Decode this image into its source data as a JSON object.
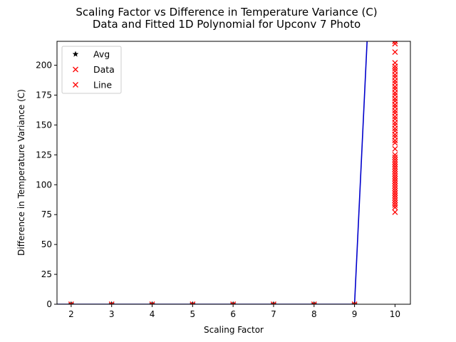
{
  "chart_data": {
    "type": "scatter",
    "title": "Scaling Factor vs Difference in Temperature Variance (C)",
    "subtitle": "Data and Fitted 1D Polynomial for Upconv 7 Photo",
    "xlabel": "Scaling Factor",
    "ylabel": "Difference in Temperature Variance (C)",
    "xlim": [
      1.65,
      10.38
    ],
    "ylim": [
      0,
      220
    ],
    "x_ticks": [
      2,
      3,
      4,
      5,
      6,
      7,
      8,
      9,
      10
    ],
    "y_ticks": [
      0,
      25,
      50,
      75,
      100,
      125,
      150,
      175,
      200
    ],
    "grid": false,
    "legend_position": "upper-left",
    "colors": {
      "avg": "#000000",
      "data": "#ff0000",
      "line": "#0000cc"
    },
    "series": [
      {
        "name": "Avg",
        "marker": "star",
        "color": "#000000",
        "points": [
          [
            2,
            0
          ],
          [
            3,
            0
          ],
          [
            4,
            0
          ],
          [
            5,
            0
          ],
          [
            6,
            0
          ],
          [
            7,
            0
          ],
          [
            8,
            0
          ],
          [
            9,
            0
          ]
        ]
      },
      {
        "name": "Data",
        "marker": "x",
        "color": "#ff0000",
        "points": [
          [
            2,
            0
          ],
          [
            3,
            0
          ],
          [
            4,
            0
          ],
          [
            5,
            0
          ],
          [
            6,
            0
          ],
          [
            7,
            0
          ],
          [
            8,
            0
          ],
          [
            9,
            0
          ],
          [
            10,
            77
          ],
          [
            10,
            81
          ],
          [
            10,
            83
          ],
          [
            10,
            85
          ],
          [
            10,
            87
          ],
          [
            10,
            89
          ],
          [
            10,
            91
          ],
          [
            10,
            93
          ],
          [
            10,
            95
          ],
          [
            10,
            97
          ],
          [
            10,
            99
          ],
          [
            10,
            101
          ],
          [
            10,
            103
          ],
          [
            10,
            105
          ],
          [
            10,
            107
          ],
          [
            10,
            109
          ],
          [
            10,
            111
          ],
          [
            10,
            113
          ],
          [
            10,
            115
          ],
          [
            10,
            117
          ],
          [
            10,
            119
          ],
          [
            10,
            121
          ],
          [
            10,
            123
          ],
          [
            10,
            125
          ],
          [
            10,
            130
          ],
          [
            10,
            135
          ],
          [
            10,
            137
          ],
          [
            10,
            140
          ],
          [
            10,
            142
          ],
          [
            10,
            145
          ],
          [
            10,
            147
          ],
          [
            10,
            150
          ],
          [
            10,
            152
          ],
          [
            10,
            155
          ],
          [
            10,
            157
          ],
          [
            10,
            160
          ],
          [
            10,
            162
          ],
          [
            10,
            165
          ],
          [
            10,
            167
          ],
          [
            10,
            170
          ],
          [
            10,
            172
          ],
          [
            10,
            175
          ],
          [
            10,
            177
          ],
          [
            10,
            180
          ],
          [
            10,
            182
          ],
          [
            10,
            185
          ],
          [
            10,
            187
          ],
          [
            10,
            190
          ],
          [
            10,
            192
          ],
          [
            10,
            195
          ],
          [
            10,
            197
          ],
          [
            10,
            199
          ],
          [
            10,
            202
          ],
          [
            10,
            211
          ],
          [
            10,
            218
          ],
          [
            10,
            220
          ]
        ]
      },
      {
        "name": "Line",
        "marker": "x",
        "color": "#ff0000",
        "points": []
      }
    ],
    "fit_line": {
      "color": "#0000cc",
      "points": [
        [
          1.65,
          0
        ],
        [
          9.0,
          0
        ],
        [
          9.31,
          220
        ]
      ]
    }
  }
}
